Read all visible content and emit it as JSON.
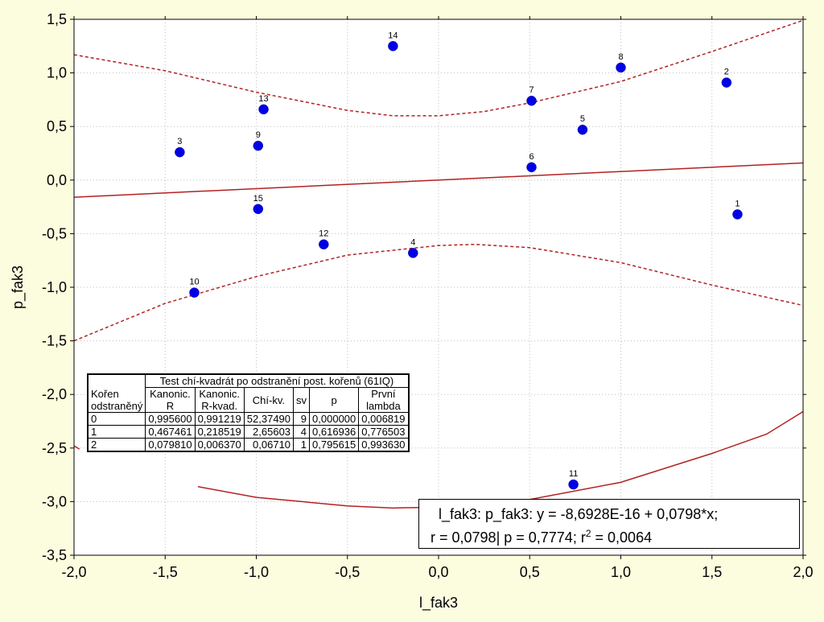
{
  "chart_data": {
    "type": "scatter",
    "title": "",
    "xlabel": "l_fak3",
    "ylabel": "p_fak3",
    "xlim": [
      -2.0,
      2.0
    ],
    "ylim": [
      -3.5,
      1.5
    ],
    "x_ticks": [
      -2.0,
      -1.5,
      -1.0,
      -0.5,
      0.0,
      0.5,
      1.0,
      1.5,
      2.0
    ],
    "y_ticks": [
      -3.5,
      -3.0,
      -2.5,
      -2.0,
      -1.5,
      -1.0,
      -0.5,
      0.0,
      0.5,
      1.0,
      1.5
    ],
    "x_tick_labels": [
      "-2,0",
      "-1,5",
      "-1,0",
      "-0,5",
      "0,0",
      "0,5",
      "1,0",
      "1,5",
      "2,0"
    ],
    "y_tick_labels": [
      "-3,5",
      "-3,0",
      "-2,5",
      "-2,0",
      "-1,5",
      "-1,0",
      "-0,5",
      "0,0",
      "0,5",
      "1,0",
      "1,5"
    ],
    "grid": true,
    "point_color": "#0000e6",
    "line_color": "#b22222",
    "points": [
      {
        "label": "1",
        "x": 1.64,
        "y": -0.32
      },
      {
        "label": "2",
        "x": 1.58,
        "y": 0.91
      },
      {
        "label": "3",
        "x": -1.42,
        "y": 0.26
      },
      {
        "label": "4",
        "x": -0.14,
        "y": -0.68
      },
      {
        "label": "5",
        "x": 0.79,
        "y": 0.47
      },
      {
        "label": "6",
        "x": 0.51,
        "y": 0.12
      },
      {
        "label": "7",
        "x": 0.51,
        "y": 0.74
      },
      {
        "label": "8",
        "x": 1.0,
        "y": 1.05
      },
      {
        "label": "9",
        "x": -0.99,
        "y": 0.32
      },
      {
        "label": "10",
        "x": -1.34,
        "y": -1.05
      },
      {
        "label": "11",
        "x": 0.74,
        "y": -2.84
      },
      {
        "label": "12",
        "x": -0.63,
        "y": -0.6
      },
      {
        "label": "13",
        "x": -0.96,
        "y": 0.66
      },
      {
        "label": "14",
        "x": -0.25,
        "y": 1.25
      },
      {
        "label": "15",
        "x": -0.99,
        "y": -0.27
      }
    ],
    "regression": {
      "intercept": 0,
      "slope": 0.0798,
      "label_line1": "l_fak3:  p_fak3:   y = -8,6928E-16 + 0,0798*x;",
      "label_line2_prefix": "r = 0,0798| p = 0,7774; r",
      "label_line2_sup": "2",
      "label_line2_suffix": " = 0,0064"
    },
    "confidence_band": {
      "style": "dashed",
      "upper": [
        [
          -2.0,
          1.17
        ],
        [
          -1.5,
          1.02
        ],
        [
          -1.0,
          0.82
        ],
        [
          -0.5,
          0.65
        ],
        [
          -0.25,
          0.6
        ],
        [
          0.0,
          0.6
        ],
        [
          0.25,
          0.64
        ],
        [
          0.5,
          0.72
        ],
        [
          1.0,
          0.92
        ],
        [
          1.5,
          1.2
        ],
        [
          2.0,
          1.49
        ]
      ],
      "lower": [
        [
          -2.0,
          -1.5
        ],
        [
          -1.5,
          -1.15
        ],
        [
          -1.0,
          -0.9
        ],
        [
          -0.5,
          -0.7
        ],
        [
          0.0,
          -0.61
        ],
        [
          0.2,
          -0.6
        ],
        [
          0.5,
          -0.63
        ],
        [
          1.0,
          -0.77
        ],
        [
          1.5,
          -0.98
        ],
        [
          2.0,
          -1.17
        ]
      ]
    },
    "ellipse_arc": {
      "style": "solid",
      "points": [
        [
          -1.32,
          -2.86
        ],
        [
          -1.0,
          -2.96
        ],
        [
          -0.5,
          -3.04
        ],
        [
          -0.25,
          -3.06
        ],
        [
          0.0,
          -3.05
        ],
        [
          0.5,
          -2.98
        ],
        [
          1.0,
          -2.82
        ],
        [
          1.5,
          -2.55
        ],
        [
          1.8,
          -2.37
        ],
        [
          2.0,
          -2.16
        ]
      ]
    },
    "edge_tick": {
      "points": [
        [
          -2.0,
          -2.48
        ],
        [
          -1.97,
          -2.51
        ]
      ]
    }
  },
  "stats_table": {
    "title": "Test chí-kvadrát po odstranění post. kořenů (61IQ)",
    "corner_line1": "Kořen",
    "corner_line2": "odstraněný",
    "headers": [
      {
        "l1": "Kanonic.",
        "l2": "R"
      },
      {
        "l1": "Kanonic.",
        "l2": "R-kvad."
      },
      {
        "l1": "Chí-kv.",
        "l2": ""
      },
      {
        "l1": "sv",
        "l2": ""
      },
      {
        "l1": "p",
        "l2": ""
      },
      {
        "l1": "První",
        "l2": "lambda"
      }
    ],
    "rows": [
      [
        "0",
        "0,995600",
        "0,991219",
        "52,37490",
        "9",
        "0,000000",
        "0,006819"
      ],
      [
        "1",
        "0,467461",
        "0,218519",
        "2,65603",
        "4",
        "0,616936",
        "0,776503"
      ],
      [
        "2",
        "0,079810",
        "0,006370",
        "0,06710",
        "1",
        "0,795615",
        "0,993630"
      ]
    ]
  }
}
